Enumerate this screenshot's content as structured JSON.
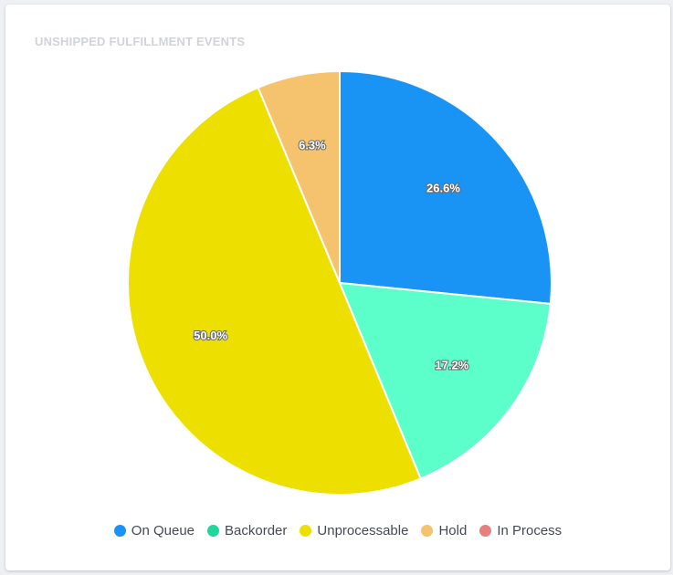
{
  "card": {
    "title": "UNSHIPPED FULFILLMENT EVENTS"
  },
  "chart_data": {
    "type": "pie",
    "title": "UNSHIPPED FULFILLMENT EVENTS",
    "legend_position": "bottom",
    "series": [
      {
        "name": "On Queue",
        "value": 26.6,
        "label": "26.6%",
        "color": "#1994f5"
      },
      {
        "name": "Backorder",
        "value": 17.2,
        "label": "17.2%",
        "color": "#5cffc9",
        "legend_color": "#1fd69b"
      },
      {
        "name": "Unprocessable",
        "value": 50.0,
        "label": "50.0%",
        "color": "#ede000"
      },
      {
        "name": "Hold",
        "value": 6.3,
        "label": "6.3%",
        "color": "#f5c36e"
      },
      {
        "name": "In Process",
        "value": 0,
        "label": "",
        "color": "#e77f7f"
      }
    ]
  }
}
